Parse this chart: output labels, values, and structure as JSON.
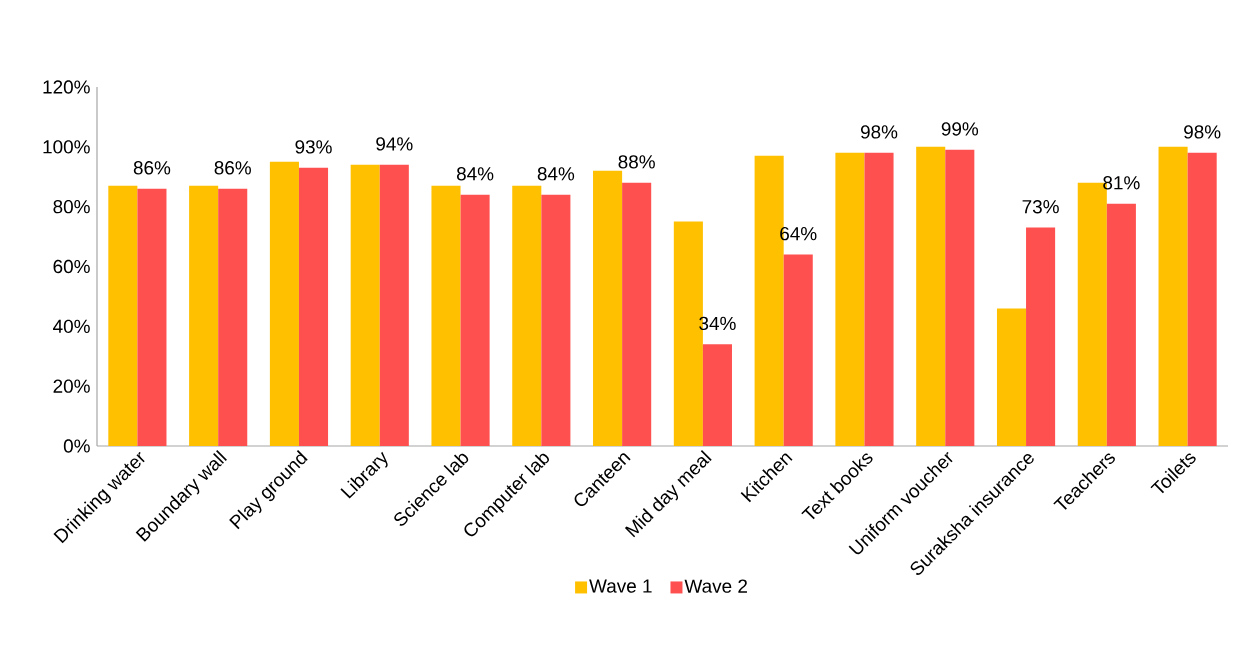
{
  "chart_data": {
    "type": "bar",
    "categories": [
      "Drinking water",
      "Boundary wall",
      "Play ground",
      "Library",
      "Science lab",
      "Computer lab",
      "Canteen",
      "Mid day meal",
      "Kitchen",
      "Text books",
      "Uniform voucher",
      "Suraksha insurance",
      "Teachers",
      "Toilets"
    ],
    "series": [
      {
        "name": "Wave 1",
        "color": "#ffc000",
        "values": [
          87,
          87,
          95,
          94,
          87,
          87,
          92,
          75,
          97,
          98,
          100,
          46,
          88,
          100
        ]
      },
      {
        "name": "Wave 2",
        "color": "#ff5050",
        "values": [
          86,
          86,
          93,
          94,
          84,
          84,
          88,
          34,
          64,
          98,
          99,
          73,
          81,
          98
        ],
        "value_labels": [
          "86%",
          "86%",
          "93%",
          "94%",
          "84%",
          "84%",
          "88%",
          "34%",
          "64%",
          "98%",
          "99%",
          "73%",
          "81%",
          "98%"
        ]
      }
    ],
    "ylim": [
      0,
      120
    ],
    "yticks": [
      {
        "value": 0,
        "label": "0%"
      },
      {
        "value": 20,
        "label": "20%"
      },
      {
        "value": 40,
        "label": "40%"
      },
      {
        "value": 60,
        "label": "60%"
      },
      {
        "value": 80,
        "label": "80%"
      },
      {
        "value": 100,
        "label": "100%"
      },
      {
        "value": 120,
        "label": "120%"
      }
    ],
    "grid": false,
    "legend": "bottom"
  }
}
